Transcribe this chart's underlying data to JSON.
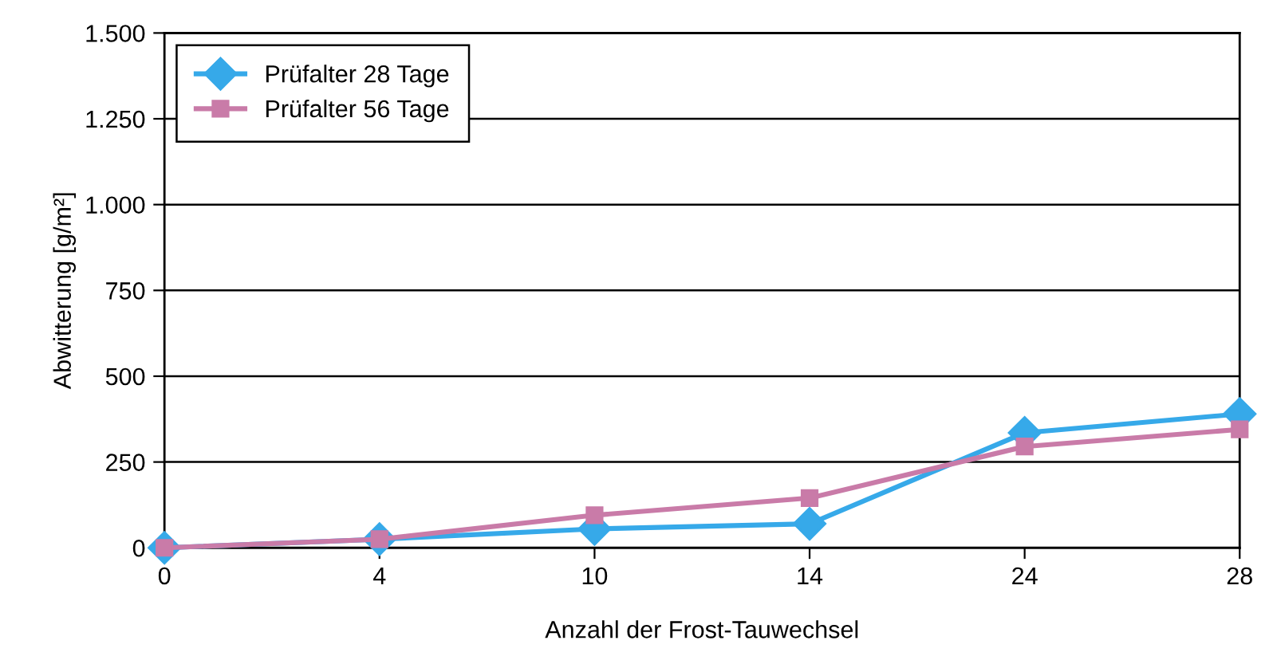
{
  "chart_data": {
    "type": "line",
    "xlabel": "Anzahl der Frost-Tauwechsel",
    "ylabel": "Abwitterung [g/m²]",
    "categories": [
      "0",
      "4",
      "10",
      "14",
      "24",
      "28"
    ],
    "series": [
      {
        "name": "Prüfalter 28 Tage",
        "color": "#36a9e9",
        "marker": "diamond",
        "values": [
          0,
          25,
          55,
          70,
          335,
          390
        ]
      },
      {
        "name": "Prüfalter 56 Tage",
        "color": "#c97ba8",
        "marker": "square",
        "values": [
          0,
          25,
          95,
          145,
          295,
          345
        ]
      }
    ],
    "ylim": [
      0,
      1500
    ],
    "yticks": [
      0,
      250,
      500,
      750,
      {
        "value": 1000,
        "label": "1.000"
      },
      {
        "value": 1250,
        "label": "1.250"
      },
      {
        "value": 1500,
        "label": "1.500"
      }
    ],
    "grid": "y",
    "legend": "top left",
    "line_style": "solid"
  }
}
